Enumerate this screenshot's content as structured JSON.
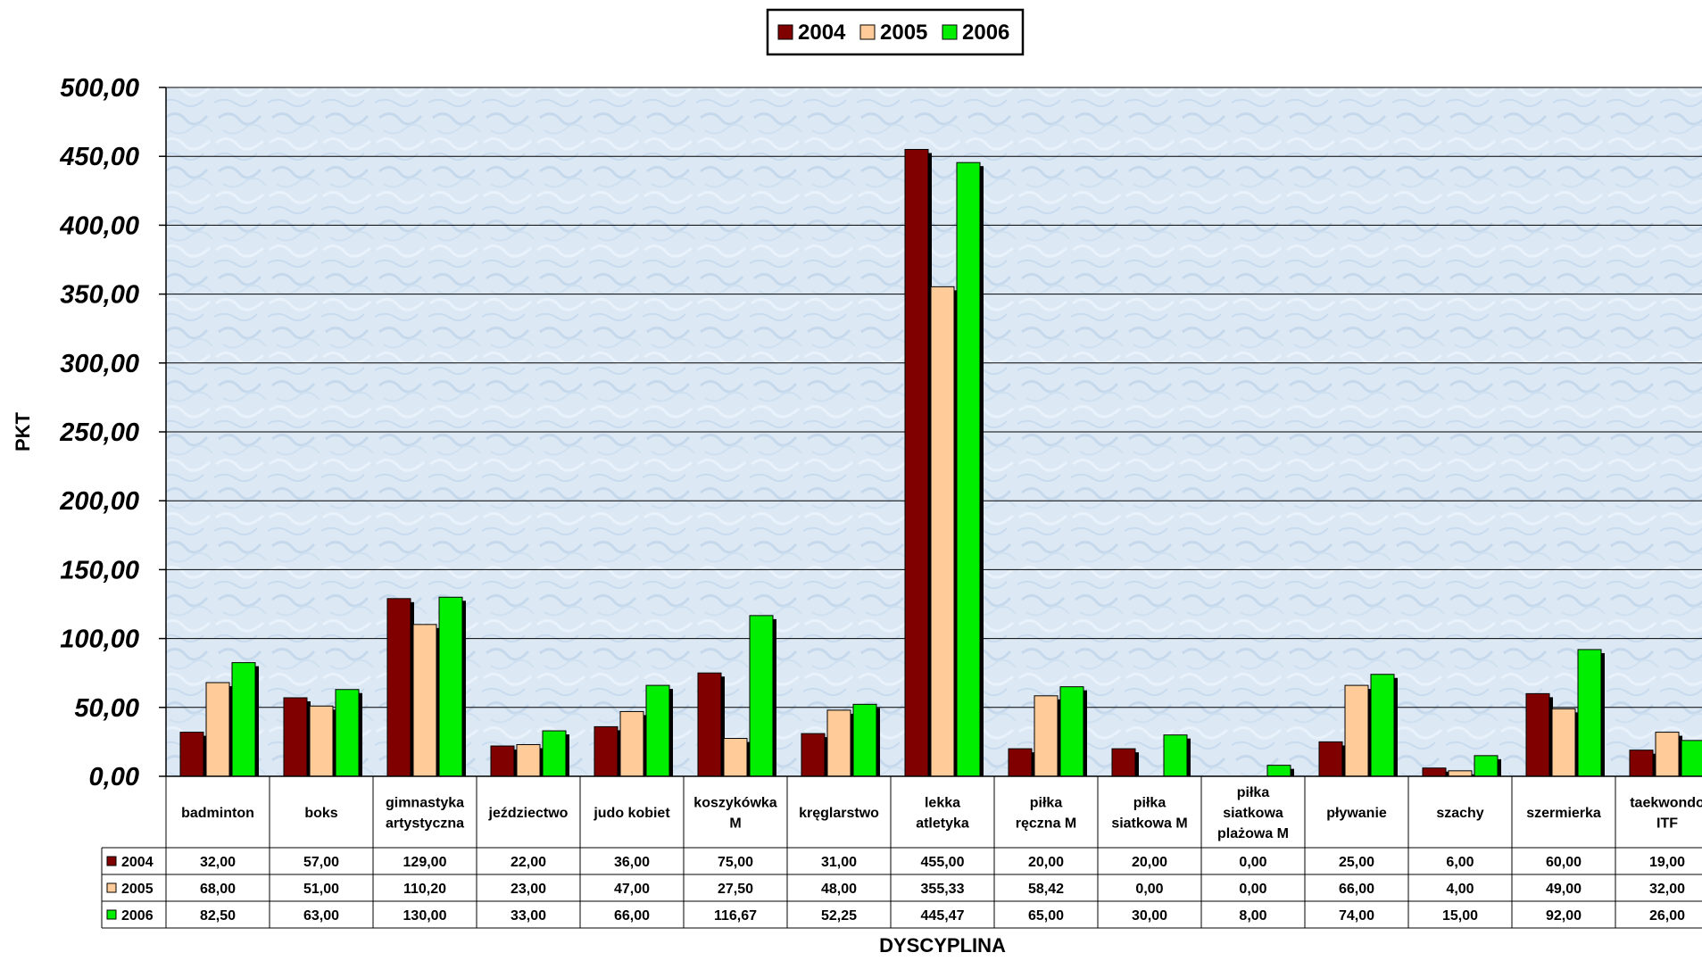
{
  "chart_data": {
    "type": "bar",
    "title": "",
    "xlabel": "DYSCYPLINA",
    "ylabel": "PKT",
    "ylim": [
      0,
      500
    ],
    "yticks": [
      "0,00",
      "50,00",
      "100,00",
      "150,00",
      "200,00",
      "250,00",
      "300,00",
      "350,00",
      "400,00",
      "450,00",
      "500,00"
    ],
    "grid": true,
    "legend_position": "top-center",
    "categories": [
      [
        "badminton"
      ],
      [
        "boks"
      ],
      [
        "gimnastyka",
        "artystyczna"
      ],
      [
        "jeździectwo"
      ],
      [
        "judo kobiet"
      ],
      [
        "koszykówka",
        "M"
      ],
      [
        "kręglarstwo"
      ],
      [
        "lekka",
        "atletyka"
      ],
      [
        "piłka",
        "ręczna M"
      ],
      [
        "piłka",
        "siatkowa M"
      ],
      [
        "piłka",
        "siatkowa",
        "plażowa M"
      ],
      [
        "pływanie"
      ],
      [
        "szachy"
      ],
      [
        "szermierka"
      ],
      [
        "taekwondo",
        "ITF"
      ]
    ],
    "series": [
      {
        "name": "2004",
        "color": "#800000",
        "values": [
          32,
          57,
          129,
          22,
          36,
          75,
          31,
          455,
          20,
          20,
          0,
          25,
          6,
          60,
          19
        ],
        "labels": [
          "32,00",
          "57,00",
          "129,00",
          "22,00",
          "36,00",
          "75,00",
          "31,00",
          "455,00",
          "20,00",
          "20,00",
          "0,00",
          "25,00",
          "6,00",
          "60,00",
          "19,00"
        ]
      },
      {
        "name": "2005",
        "color": "#FFCC99",
        "values": [
          68,
          51,
          110.2,
          23,
          47,
          27.5,
          48,
          355.33,
          58.42,
          0,
          0,
          66,
          4,
          49,
          32
        ],
        "labels": [
          "68,00",
          "51,00",
          "110,20",
          "23,00",
          "47,00",
          "27,50",
          "48,00",
          "355,33",
          "58,42",
          "0,00",
          "0,00",
          "66,00",
          "4,00",
          "49,00",
          "32,00"
        ]
      },
      {
        "name": "2006",
        "color": "#00EE00",
        "values": [
          82.5,
          63,
          130,
          33,
          66,
          116.67,
          52.25,
          445.47,
          65,
          30,
          8,
          74,
          15,
          92,
          26
        ],
        "labels": [
          "82,50",
          "63,00",
          "130,00",
          "33,00",
          "66,00",
          "116,67",
          "52,25",
          "445,47",
          "65,00",
          "30,00",
          "8,00",
          "74,00",
          "15,00",
          "92,00",
          "26,00"
        ]
      }
    ]
  }
}
